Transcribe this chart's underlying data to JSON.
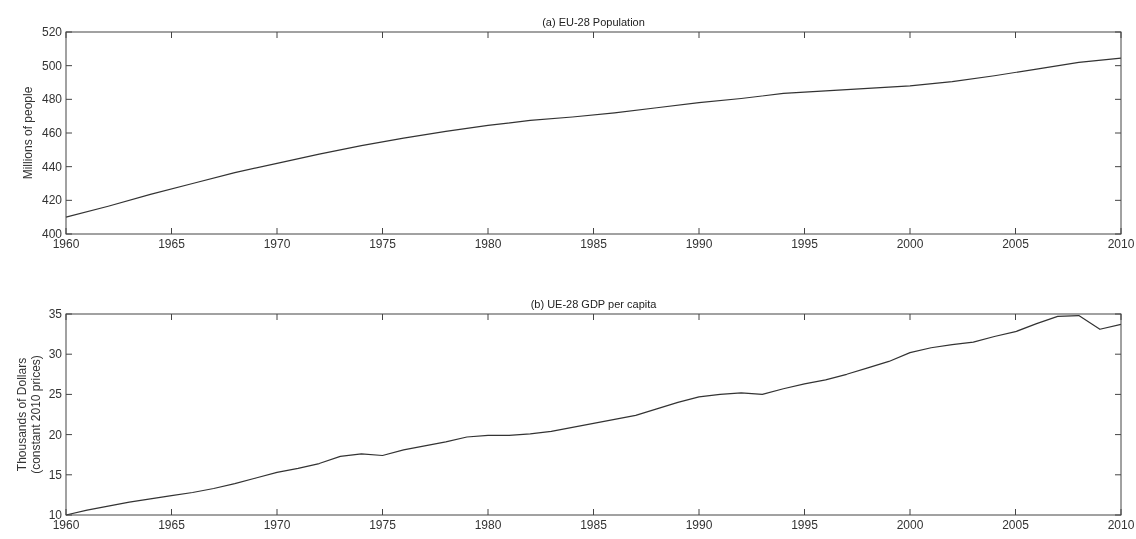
{
  "chart_data": [
    {
      "type": "line",
      "title": "(a) EU-28 Population",
      "ylabel": "Millions of people",
      "xlim": [
        1960,
        2010
      ],
      "xticks": [
        1960,
        1965,
        1970,
        1975,
        1980,
        1985,
        1990,
        1995,
        2000,
        2005,
        2010
      ],
      "ylim": [
        400,
        520
      ],
      "yticks": [
        400,
        420,
        440,
        460,
        480,
        500,
        520
      ],
      "grid": false,
      "x": [
        1960,
        1962,
        1964,
        1966,
        1968,
        1970,
        1972,
        1974,
        1976,
        1978,
        1980,
        1982,
        1984,
        1986,
        1988,
        1990,
        1992,
        1994,
        1996,
        1998,
        2000,
        2002,
        2004,
        2006,
        2008,
        2010
      ],
      "series": [
        {
          "color": "#333333",
          "values": [
            410,
            416.5,
            423.5,
            430,
            436.5,
            442,
            447.5,
            452.5,
            457,
            461,
            464.5,
            467.5,
            469.5,
            472,
            475,
            478,
            480.5,
            483.5,
            485,
            486.5,
            488,
            490.5,
            494,
            498,
            502,
            504.5
          ]
        }
      ]
    },
    {
      "type": "line",
      "title": "(b) UE-28 GDP per capita",
      "ylabel": "Thousands of Dollars\n(constant 2010 prices)",
      "xlim": [
        1960,
        2010
      ],
      "xticks": [
        1960,
        1965,
        1970,
        1975,
        1980,
        1985,
        1990,
        1995,
        2000,
        2005,
        2010
      ],
      "ylim": [
        10,
        35
      ],
      "yticks": [
        10,
        15,
        20,
        25,
        30,
        35
      ],
      "grid": false,
      "x": [
        1960,
        1961,
        1962,
        1963,
        1964,
        1965,
        1966,
        1967,
        1968,
        1969,
        1970,
        1971,
        1972,
        1973,
        1974,
        1975,
        1976,
        1977,
        1978,
        1979,
        1980,
        1981,
        1982,
        1983,
        1984,
        1985,
        1986,
        1987,
        1988,
        1989,
        1990,
        1991,
        1992,
        1993,
        1994,
        1995,
        1996,
        1997,
        1998,
        1999,
        2000,
        2001,
        2002,
        2003,
        2004,
        2005,
        2006,
        2007,
        2008,
        2009,
        2010
      ],
      "series": [
        {
          "color": "#333333",
          "values": [
            10,
            10.6,
            11.1,
            11.6,
            12.0,
            12.4,
            12.8,
            13.3,
            13.9,
            14.6,
            15.3,
            15.8,
            16.4,
            17.3,
            17.6,
            17.4,
            18.1,
            18.6,
            19.1,
            19.7,
            19.9,
            19.9,
            20.1,
            20.4,
            20.9,
            21.4,
            21.9,
            22.4,
            23.2,
            24.0,
            24.7,
            25.0,
            25.2,
            25.0,
            25.7,
            26.3,
            26.8,
            27.5,
            28.3,
            29.1,
            30.2,
            30.8,
            31.2,
            31.5,
            32.2,
            32.8,
            33.8,
            34.7,
            34.8,
            33.1,
            33.7
          ]
        }
      ]
    }
  ]
}
